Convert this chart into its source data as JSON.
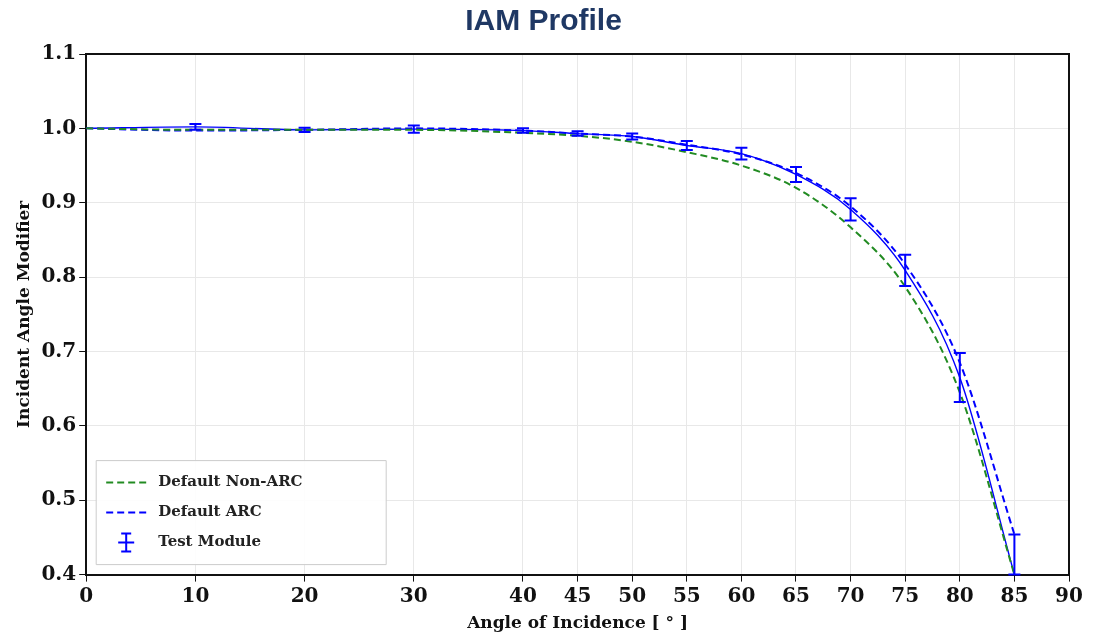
{
  "chart_data": {
    "type": "line",
    "title": "IAM Profile",
    "xlabel": "Angle of Incidence [ ° ]",
    "ylabel": "Incident Angle Modifier",
    "x": [
      0,
      10,
      20,
      30,
      40,
      45,
      50,
      55,
      60,
      65,
      70,
      75,
      80,
      85
    ],
    "series": [
      {
        "name": "Default Non-ARC",
        "color": "#228b22",
        "line_style": "dashed",
        "marker": "none",
        "values": [
          1.0,
          0.998,
          0.998,
          0.998,
          0.994,
          0.99,
          0.982,
          0.968,
          0.95,
          0.92,
          0.867,
          0.787,
          0.645,
          0.4
        ]
      },
      {
        "name": "Default ARC",
        "color": "#0000ff",
        "line_style": "dashed",
        "marker": "none",
        "values": [
          1.0,
          0.997,
          0.998,
          1.0,
          0.997,
          0.993,
          0.989,
          0.978,
          0.965,
          0.94,
          0.895,
          0.817,
          0.685,
          0.454
        ]
      },
      {
        "name": "Test Module",
        "color": "#0000ff",
        "line_style": "solid",
        "marker": "none",
        "values": [
          1.0,
          1.002,
          0.998,
          0.999,
          0.997,
          0.993,
          0.989,
          0.977,
          0.966,
          0.938,
          0.891,
          0.809,
          0.665,
          0.4
        ],
        "errors": [
          null,
          0.004,
          0.003,
          0.005,
          0.003,
          0.003,
          0.004,
          0.006,
          0.008,
          0.01,
          0.015,
          0.021,
          0.033,
          [
            0.4,
            0.454
          ]
        ]
      }
    ],
    "xlim": [
      0,
      90
    ],
    "xticks": [
      0,
      10,
      20,
      30,
      40,
      45,
      50,
      55,
      60,
      65,
      70,
      75,
      80,
      85,
      90
    ],
    "ylim": [
      0.4,
      1.1
    ],
    "yticks": [
      0.4,
      0.5,
      0.6,
      0.7,
      0.8,
      0.9,
      {
        "value": 1,
        "label": "1.0"
      },
      1.1
    ],
    "grid": true,
    "legend": "bottom left"
  }
}
